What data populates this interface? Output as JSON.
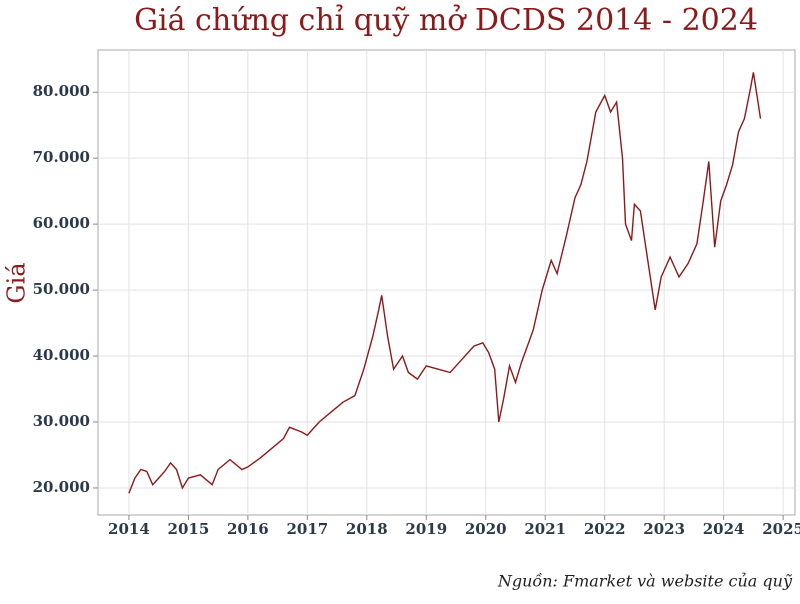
{
  "chart_data": {
    "type": "line",
    "title": "Giá chứng chỉ quỹ mở DCDS 2014 - 2024",
    "y_label": "Giá",
    "source": "Nguồn: Fmarket và website của quỹ",
    "x": [
      2014.0,
      2014.1,
      2014.2,
      2014.3,
      2014.4,
      2014.5,
      2014.6,
      2014.7,
      2014.8,
      2014.9,
      2015.0,
      2015.2,
      2015.4,
      2015.5,
      2015.7,
      2015.9,
      2016.0,
      2016.2,
      2016.4,
      2016.6,
      2016.7,
      2016.9,
      2017.0,
      2017.2,
      2017.4,
      2017.6,
      2017.8,
      2017.95,
      2018.1,
      2018.2,
      2018.25,
      2018.35,
      2018.45,
      2018.6,
      2018.7,
      2018.85,
      2019.0,
      2019.2,
      2019.4,
      2019.6,
      2019.8,
      2019.95,
      2020.05,
      2020.15,
      2020.22,
      2020.3,
      2020.4,
      2020.5,
      2020.6,
      2020.7,
      2020.8,
      2020.95,
      2021.1,
      2021.2,
      2021.35,
      2021.5,
      2021.6,
      2021.7,
      2021.85,
      2022.0,
      2022.1,
      2022.2,
      2022.3,
      2022.35,
      2022.45,
      2022.5,
      2022.6,
      2022.7,
      2022.85,
      2022.95,
      2023.1,
      2023.25,
      2023.4,
      2023.55,
      2023.65,
      2023.75,
      2023.85,
      2023.95,
      2024.05,
      2024.15,
      2024.25,
      2024.35,
      2024.45,
      2024.5,
      2024.57,
      2024.62
    ],
    "series": [
      {
        "color": "#8b1a1a",
        "values": [
          19200,
          21500,
          22800,
          22500,
          20500,
          21500,
          22500,
          23800,
          22800,
          20000,
          21500,
          22000,
          20500,
          22800,
          24300,
          22800,
          23200,
          24500,
          26000,
          27500,
          29200,
          28500,
          28000,
          30000,
          31500,
          33000,
          34000,
          38000,
          43000,
          47000,
          49200,
          43000,
          38000,
          40000,
          37500,
          36500,
          38500,
          38000,
          37500,
          39500,
          41500,
          42000,
          40500,
          38000,
          30000,
          33500,
          38500,
          36000,
          39000,
          41500,
          44000,
          50000,
          54500,
          52500,
          58000,
          64000,
          66000,
          69500,
          77000,
          79500,
          77000,
          78500,
          70000,
          60000,
          57500,
          63000,
          62000,
          56000,
          47000,
          52000,
          55000,
          52000,
          54000,
          57000,
          63000,
          69500,
          56500,
          63500,
          66000,
          69000,
          74000,
          76000,
          80500,
          83000,
          79000,
          76000
        ]
      }
    ],
    "xlim": [
      2013.48,
      2025.2
    ],
    "xticks": [
      2014,
      2015,
      2016,
      2017,
      2018,
      2019,
      2020,
      2021,
      2022,
      2023,
      2024,
      2025
    ],
    "ylim": [
      15900,
      86400
    ],
    "yticks": [
      {
        "value": 20000,
        "label": "20.000"
      },
      {
        "value": 30000,
        "label": "30.000"
      },
      {
        "value": 40000,
        "label": "40.000"
      },
      {
        "value": 50000,
        "label": "50.000"
      },
      {
        "value": 60000,
        "label": "60.000"
      },
      {
        "value": 70000,
        "label": "70.000"
      },
      {
        "value": 80000,
        "label": "80.000"
      }
    ],
    "grid": true
  }
}
